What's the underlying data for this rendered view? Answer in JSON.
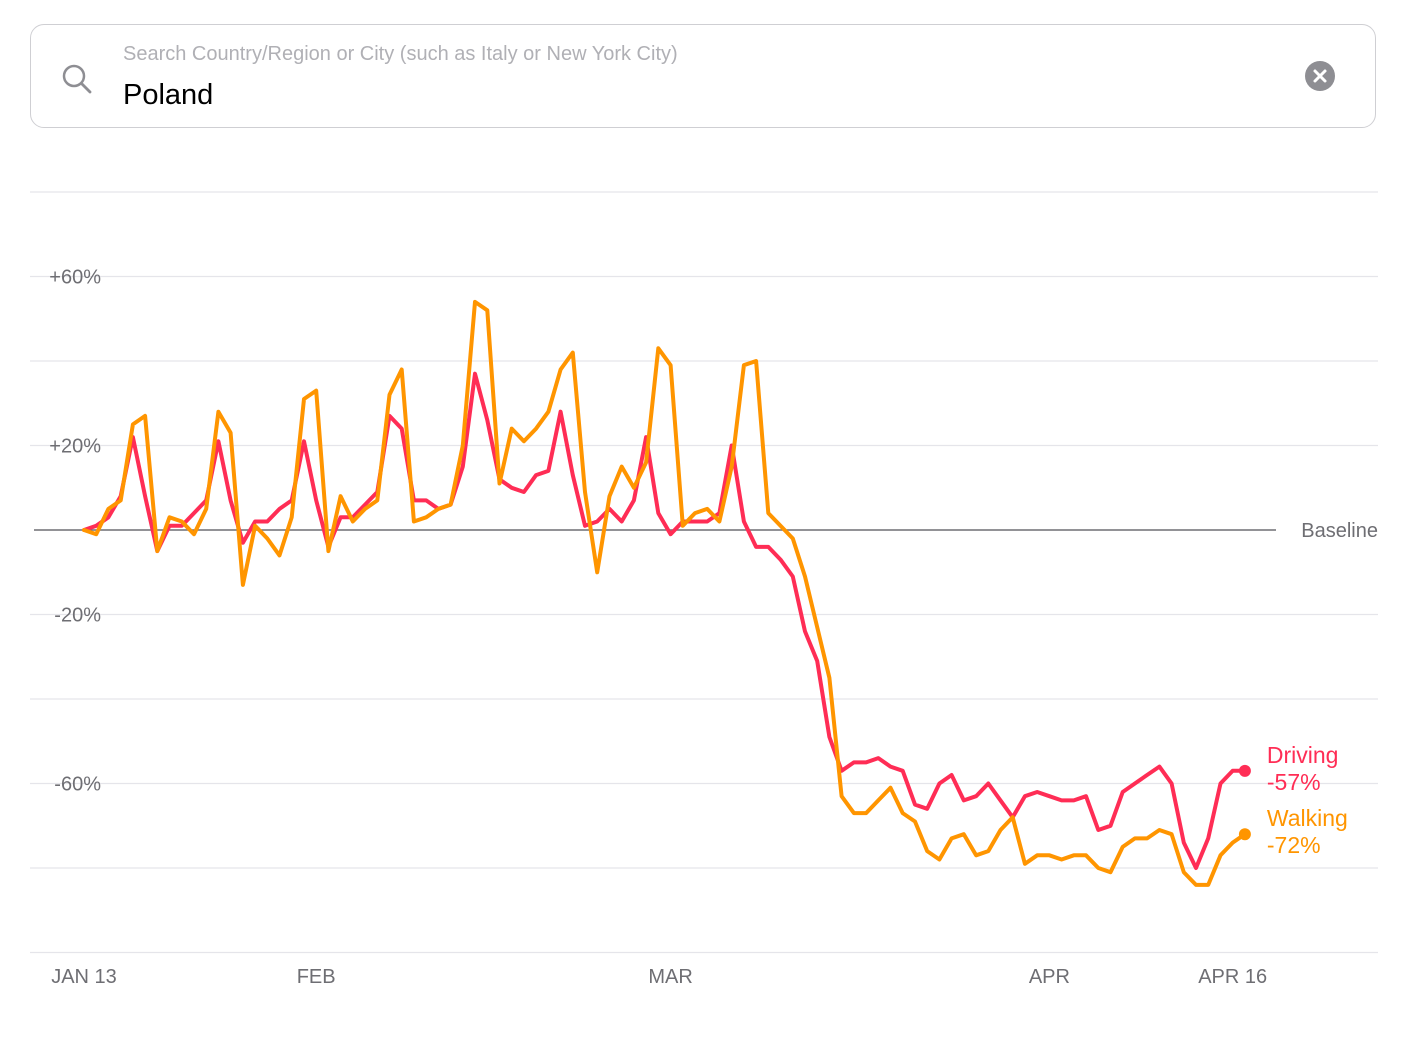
{
  "search": {
    "placeholder": "Search Country/Region or City (such as Italy or New York City)",
    "value": "Poland"
  },
  "icons": {
    "search": "search-icon",
    "clear": "clear-circle-icon"
  },
  "chart_data": {
    "type": "line",
    "baseline_label": "Baseline",
    "ylim": [
      -100,
      80
    ],
    "y_ticks": [
      {
        "value": 60,
        "label": "+60%"
      },
      {
        "value": 20,
        "label": "+20%"
      },
      {
        "value": -20,
        "label": "-20%"
      },
      {
        "value": -60,
        "label": "-60%"
      }
    ],
    "gridlines": [
      80,
      60,
      40,
      20,
      -20,
      -40,
      -60,
      -80,
      -100
    ],
    "x_ticks": [
      {
        "index": 0,
        "label": "JAN 13"
      },
      {
        "index": 19,
        "label": "FEB"
      },
      {
        "index": 48,
        "label": "MAR"
      },
      {
        "index": 79,
        "label": "APR"
      },
      {
        "index": 94,
        "label": "APR 16"
      }
    ],
    "grid": true,
    "legend": "end-of-line labels",
    "series": [
      {
        "name": "Driving",
        "end_label": "-57%",
        "color": "#ff2d55",
        "values": [
          0,
          1,
          3,
          8,
          22,
          8,
          -5,
          1,
          1,
          4,
          7,
          21,
          7,
          -3,
          2,
          2,
          5,
          7,
          21,
          7,
          -4,
          3,
          3,
          6,
          9,
          27,
          24,
          7,
          7,
          5,
          6,
          15,
          37,
          26,
          12,
          10,
          9,
          13,
          14,
          28,
          13,
          1,
          2,
          5,
          2,
          7,
          22,
          4,
          -1,
          2,
          2,
          2,
          4,
          20,
          2,
          -4,
          -4,
          -7,
          -11,
          -24,
          -31,
          -49,
          -57,
          -55,
          -55,
          -54,
          -56,
          -57,
          -65,
          -66,
          -60,
          -58,
          -64,
          -63,
          -60,
          -64,
          -68,
          -63,
          -62,
          -63,
          -64,
          -64,
          -63,
          -71,
          -70,
          -62,
          -60,
          -58,
          -56,
          -60,
          -74,
          -80,
          -73,
          -60,
          -57,
          -57
        ]
      },
      {
        "name": "Walking",
        "end_label": "-72%",
        "color": "#ff9500",
        "values": [
          0,
          -1,
          5,
          7,
          25,
          27,
          -5,
          3,
          2,
          -1,
          5,
          28,
          23,
          -13,
          1,
          -2,
          -6,
          3,
          31,
          33,
          -5,
          8,
          2,
          5,
          7,
          32,
          38,
          2,
          3,
          5,
          6,
          20,
          54,
          52,
          11,
          24,
          21,
          24,
          28,
          38,
          42,
          9,
          -10,
          8,
          15,
          10,
          16,
          43,
          39,
          1,
          4,
          5,
          2,
          15,
          39,
          40,
          4,
          1,
          -2,
          -11,
          -23,
          -35,
          -63,
          -67,
          -67,
          -64,
          -61,
          -67,
          -69,
          -76,
          -78,
          -73,
          -72,
          -77,
          -76,
          -71,
          -68,
          -79,
          -77,
          -77,
          -78,
          -77,
          -77,
          -80,
          -81,
          -75,
          -73,
          -73,
          -71,
          -72,
          -81,
          -84,
          -84,
          -77,
          -74,
          -72
        ]
      }
    ]
  }
}
